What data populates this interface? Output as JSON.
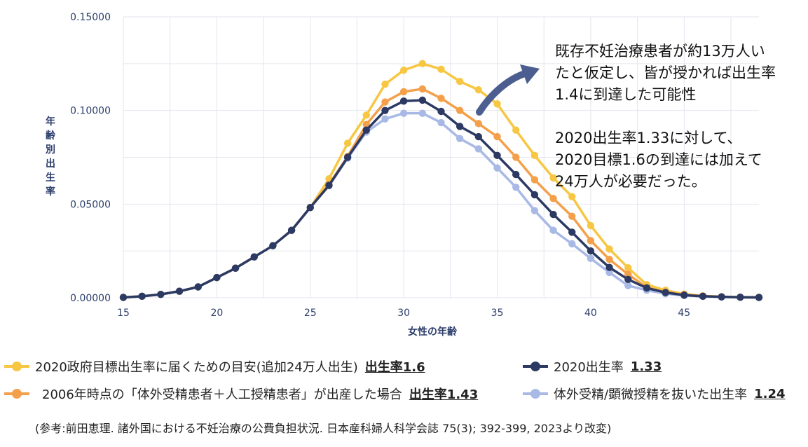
{
  "chart_data": {
    "type": "line",
    "xlabel": "女性の年齢",
    "ylabel": "年齢別出生率",
    "xlim": [
      15,
      49
    ],
    "ylim": [
      0,
      0.15
    ],
    "x_ticks": [
      "15",
      "20",
      "25",
      "30",
      "35",
      "40",
      "45"
    ],
    "y_ticks": [
      "0.00000",
      "0.05000",
      "0.10000",
      "0.15000"
    ],
    "grid": true,
    "legend_position": "bottom",
    "x": [
      15,
      16,
      17,
      18,
      19,
      20,
      21,
      22,
      23,
      24,
      25,
      26,
      27,
      28,
      29,
      30,
      31,
      32,
      33,
      34,
      35,
      36,
      37,
      38,
      39,
      40,
      41,
      42,
      43,
      44,
      45,
      46,
      47,
      48,
      49
    ],
    "series": [
      {
        "name": "2020政府目標出生率に届くための目安(追加24万人出生)",
        "label": "出生率1.6",
        "color": "#f7c744",
        "values": [
          0.0002,
          0.0008,
          0.0018,
          0.0035,
          0.0058,
          0.0108,
          0.0158,
          0.0218,
          0.0278,
          0.036,
          0.0482,
          0.0635,
          0.0825,
          0.0975,
          0.114,
          0.1215,
          0.125,
          0.122,
          0.1155,
          0.111,
          0.1035,
          0.0895,
          0.076,
          0.064,
          0.054,
          0.0385,
          0.026,
          0.016,
          0.007,
          0.004,
          0.002,
          0.001,
          0.0006,
          0.0003,
          0.0002
        ]
      },
      {
        "name": "2006年時点の「体外受精患者＋人工授精患者」が出産した場合",
        "label": "出生率1.43",
        "color": "#f4a04b",
        "values": [
          0.0002,
          0.0008,
          0.0018,
          0.0035,
          0.0058,
          0.0108,
          0.0158,
          0.0218,
          0.0278,
          0.036,
          0.0482,
          0.0605,
          0.0755,
          0.0925,
          0.1045,
          0.11,
          0.1115,
          0.1065,
          0.1,
          0.093,
          0.086,
          0.075,
          0.063,
          0.053,
          0.0435,
          0.0305,
          0.0205,
          0.0125,
          0.0055,
          0.003,
          0.0017,
          0.0009,
          0.0005,
          0.0003,
          0.0002
        ]
      },
      {
        "name": "2020出生率",
        "label": "1.33",
        "color": "#2c3a63",
        "values": [
          0.0002,
          0.0008,
          0.0018,
          0.0035,
          0.0058,
          0.0108,
          0.0158,
          0.0218,
          0.0278,
          0.036,
          0.0482,
          0.06,
          0.075,
          0.0895,
          0.1,
          0.105,
          0.1055,
          0.0995,
          0.0915,
          0.086,
          0.076,
          0.0658,
          0.055,
          0.0445,
          0.035,
          0.025,
          0.0162,
          0.0098,
          0.0052,
          0.0028,
          0.0014,
          0.0008,
          0.0005,
          0.0003,
          0.0002
        ]
      },
      {
        "name": "体外受精/顕微授精を抜いた出生率",
        "label": "1.24",
        "color": "#a9b9e6",
        "values": [
          0.0002,
          0.0008,
          0.0018,
          0.0035,
          0.0058,
          0.0108,
          0.0158,
          0.0218,
          0.0278,
          0.036,
          0.0482,
          0.0598,
          0.0745,
          0.0885,
          0.0955,
          0.0985,
          0.0985,
          0.0935,
          0.085,
          0.0795,
          0.0693,
          0.059,
          0.0465,
          0.036,
          0.0288,
          0.021,
          0.0135,
          0.0065,
          0.004,
          0.0022,
          0.0012,
          0.0007,
          0.0004,
          0.0002,
          0.0001
        ]
      }
    ]
  },
  "annotation": {
    "line1": "既存不妊治療患者が約13万人い\nたと仮定し、皆が授かれば出生率\n1.4に到達した可能性",
    "line2": "2020出生率1.33に対して、\n2020目標1.6の到達には加えて\n24万人が必要だった。"
  },
  "legend": {
    "item1_text": "2020政府目標出生率に届くための目安(追加24万人出生)",
    "item1_value": "出生率1.6",
    "item2_text": "2006年時点の「体外受精患者＋人工授精患者」が出産した場合",
    "item2_value": "出生率1.43",
    "item3_text": "2020出生率",
    "item3_value": "1.33",
    "item4_text": "体外受精/顕微授精を抜いた出生率",
    "item4_value": "1.24"
  },
  "reference": "(参考:前田恵理. 諸外国における不妊治療の公費負担状況. 日本産科婦人科学会誌 75(3); 392-399, 2023より改変)"
}
